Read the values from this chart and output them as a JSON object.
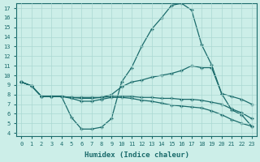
{
  "xlabel": "Humidex (Indice chaleur)",
  "bg_color": "#cceee8",
  "line_color": "#1a6b6b",
  "grid_color": "#aad8d2",
  "xlim": [
    -0.5,
    23.5
  ],
  "ylim": [
    3.7,
    17.5
  ],
  "xticks": [
    0,
    1,
    2,
    3,
    4,
    5,
    6,
    7,
    8,
    9,
    10,
    11,
    12,
    13,
    14,
    15,
    16,
    17,
    18,
    19,
    20,
    21,
    22,
    23
  ],
  "yticks": [
    4,
    5,
    6,
    7,
    8,
    9,
    10,
    11,
    12,
    13,
    14,
    15,
    16,
    17
  ],
  "lines": [
    {
      "x": [
        0,
        1,
        2,
        3,
        4,
        5,
        6,
        7,
        8,
        9,
        10,
        11,
        12,
        13,
        14,
        15,
        16,
        17,
        18,
        19,
        20,
        21,
        22,
        23
      ],
      "y": [
        9.3,
        8.9,
        7.8,
        7.8,
        7.8,
        5.6,
        4.4,
        4.4,
        4.6,
        5.5,
        9.3,
        10.8,
        13.0,
        14.8,
        16.0,
        17.3,
        17.5,
        16.8,
        13.2,
        11.1,
        8.1,
        6.4,
        5.9,
        4.7
      ]
    },
    {
      "x": [
        0,
        1,
        2,
        3,
        4,
        5,
        6,
        7,
        8,
        9,
        10,
        11,
        12,
        13,
        14,
        15,
        16,
        17,
        18,
        19,
        20,
        21,
        22,
        23
      ],
      "y": [
        9.3,
        8.9,
        7.8,
        7.8,
        7.8,
        7.7,
        7.7,
        7.7,
        7.7,
        8.0,
        8.8,
        9.3,
        9.5,
        9.8,
        10.0,
        10.2,
        10.5,
        11.0,
        10.8,
        10.8,
        8.1,
        7.8,
        7.5,
        7.0
      ]
    },
    {
      "x": [
        0,
        1,
        2,
        3,
        4,
        5,
        6,
        7,
        8,
        9,
        10,
        11,
        12,
        13,
        14,
        15,
        16,
        17,
        18,
        19,
        20,
        21,
        22,
        23
      ],
      "y": [
        9.3,
        8.9,
        7.8,
        7.8,
        7.8,
        7.7,
        7.6,
        7.6,
        7.7,
        7.8,
        7.8,
        7.8,
        7.7,
        7.7,
        7.6,
        7.6,
        7.5,
        7.5,
        7.4,
        7.2,
        7.0,
        6.5,
        6.1,
        5.5
      ]
    },
    {
      "x": [
        0,
        1,
        2,
        3,
        4,
        5,
        6,
        7,
        8,
        9,
        10,
        11,
        12,
        13,
        14,
        15,
        16,
        17,
        18,
        19,
        20,
        21,
        22,
        23
      ],
      "y": [
        9.3,
        8.9,
        7.8,
        7.8,
        7.8,
        7.6,
        7.3,
        7.3,
        7.5,
        7.7,
        7.7,
        7.6,
        7.4,
        7.3,
        7.1,
        6.9,
        6.8,
        6.7,
        6.6,
        6.3,
        5.9,
        5.4,
        5.0,
        4.7
      ]
    }
  ]
}
